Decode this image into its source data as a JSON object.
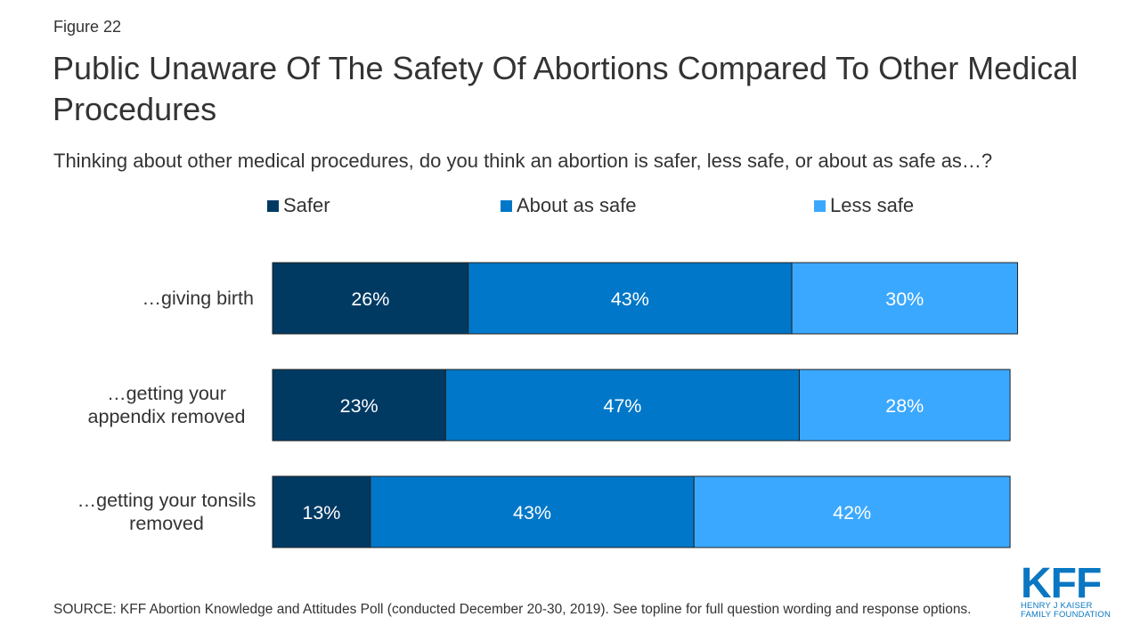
{
  "figure_label": "Figure 22",
  "colors": {
    "safer": "#003a63",
    "about_as_safe": "#0077c8",
    "less_safe": "#3ba8ff",
    "bar_label_text": "#ffffff",
    "brand": "#0a77c3"
  },
  "chart_data": {
    "type": "bar",
    "orientation": "horizontal",
    "stacked": true,
    "title": "Public Unaware Of The Safety Of Abortions Compared To Other Medical Procedures",
    "subtitle": "Thinking about other medical procedures, do you think an abortion is safer, less safe, or about as safe as…?",
    "categories": [
      "…giving birth",
      "…getting your appendix removed",
      "…getting your tonsils removed"
    ],
    "category_label_lines": [
      [
        "…giving birth"
      ],
      [
        "…getting your",
        "appendix removed"
      ],
      [
        "…getting your tonsils",
        "removed"
      ]
    ],
    "series": [
      {
        "name": "Safer",
        "values": [
          26,
          23,
          13
        ],
        "labels": [
          "26%",
          "23%",
          "13%"
        ]
      },
      {
        "name": "About as safe",
        "values": [
          43,
          47,
          43
        ],
        "labels": [
          "43%",
          "47%",
          "43%"
        ]
      },
      {
        "name": "Less safe",
        "values": [
          30,
          28,
          42
        ],
        "labels": [
          "30%",
          "28%",
          "42%"
        ]
      }
    ],
    "xlim": [
      0,
      100
    ],
    "legend_position": "top",
    "grid": false,
    "xlabel": "",
    "ylabel": ""
  },
  "source_note": "SOURCE: KFF Abortion Knowledge and Attitudes Poll (conducted December 20-30, 2019). See topline for full question wording and response options.",
  "logo": {
    "wordmark": "KFF",
    "sub_line1": "HENRY J KAISER",
    "sub_line2": "FAMILY FOUNDATION"
  }
}
